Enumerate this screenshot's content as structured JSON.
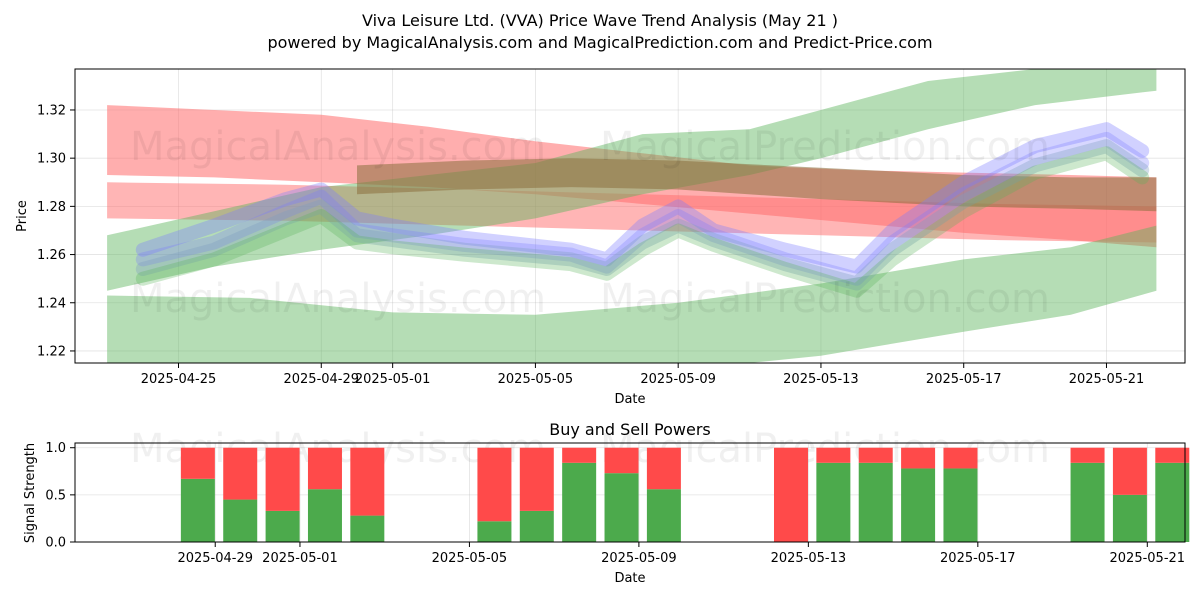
{
  "chart_data": [
    {
      "type": "area",
      "title": "Viva Leisure Ltd. (VVA) Price Wave Trend Analysis (May 21 )",
      "subtitle": "powered by MagicalAnalysis.com and MagicalPrediction.com and Predict-Price.com",
      "xlabel": "Date",
      "ylabel": "Price",
      "ylim": [
        1.215,
        1.337
      ],
      "x_ticks": [
        "2025-04-25",
        "2025-04-29",
        "2025-05-01",
        "2025-05-05",
        "2025-05-09",
        "2025-05-13",
        "2025-05-17",
        "2025-05-21"
      ],
      "y_ticks": [
        "1.22",
        "1.24",
        "1.26",
        "1.28",
        "1.30",
        "1.32"
      ],
      "watermarks": [
        "MagicalAnalysis.com",
        "MagicalPrediction.com",
        "MagicalAnalysis.com",
        "MagicalPrediction.com"
      ],
      "colors": {
        "red": "#ff6b6b",
        "green": "#5ab45a",
        "blue": "#7a7aff",
        "slate": "#7f9fbf",
        "brown": "#8b6f3e"
      },
      "series": [
        {
          "name": "red-wave-upper",
          "color": "#ff6b6b",
          "opacity": 0.55,
          "x": [
            0,
            3,
            6,
            9,
            12,
            15,
            18,
            21,
            24,
            27,
            29.4
          ],
          "lower": [
            1.293,
            1.292,
            1.29,
            1.288,
            1.285,
            1.281,
            1.277,
            1.273,
            1.269,
            1.266,
            1.263
          ],
          "upper": [
            1.322,
            1.32,
            1.318,
            1.313,
            1.307,
            1.302,
            1.297,
            1.295,
            1.294,
            1.293,
            1.292
          ]
        },
        {
          "name": "red-wave-lower",
          "color": "#ff6b6b",
          "opacity": 0.5,
          "x": [
            0,
            5,
            10,
            15,
            20,
            25,
            29.4
          ],
          "lower": [
            1.275,
            1.274,
            1.272,
            1.27,
            1.268,
            1.266,
            1.265
          ],
          "upper": [
            1.29,
            1.289,
            1.287,
            1.285,
            1.283,
            1.281,
            1.28
          ]
        },
        {
          "name": "green-wave-top",
          "color": "#5ab45a",
          "opacity": 0.45,
          "x": [
            0,
            3,
            6,
            9,
            12,
            15,
            18,
            20,
            23,
            26,
            29.4
          ],
          "lower": [
            1.245,
            1.255,
            1.262,
            1.268,
            1.275,
            1.285,
            1.293,
            1.3,
            1.312,
            1.322,
            1.328
          ],
          "upper": [
            1.268,
            1.278,
            1.288,
            1.293,
            1.298,
            1.31,
            1.312,
            1.32,
            1.332,
            1.337,
            1.338
          ]
        },
        {
          "name": "green-wave-bottom",
          "color": "#5ab45a",
          "opacity": 0.45,
          "x": [
            0,
            4,
            8,
            12,
            16,
            20,
            24,
            27,
            29.4
          ],
          "lower": [
            1.215,
            1.215,
            1.212,
            1.21,
            1.212,
            1.218,
            1.228,
            1.235,
            1.245
          ],
          "upper": [
            1.243,
            1.242,
            1.236,
            1.235,
            1.24,
            1.248,
            1.258,
            1.263,
            1.272
          ]
        },
        {
          "name": "brown-wave",
          "color": "#8b6f3e",
          "opacity": 0.55,
          "x": [
            7,
            10,
            13,
            16,
            20,
            24,
            27,
            29.4
          ],
          "lower": [
            1.285,
            1.287,
            1.288,
            1.287,
            1.283,
            1.28,
            1.279,
            1.278
          ],
          "upper": [
            1.297,
            1.299,
            1.3,
            1.299,
            1.296,
            1.293,
            1.292,
            1.292
          ]
        },
        {
          "name": "blue-trend-1",
          "color": "#7a7aff",
          "opacity": 0.35,
          "x": [
            1,
            3,
            5,
            6,
            7,
            8,
            10,
            13,
            14,
            15,
            16,
            17,
            19,
            21,
            22,
            24,
            26,
            28,
            29
          ],
          "y": [
            1.262,
            1.272,
            1.283,
            1.287,
            1.275,
            1.272,
            1.267,
            1.262,
            1.258,
            1.272,
            1.28,
            1.27,
            1.262,
            1.255,
            1.27,
            1.29,
            1.305,
            1.312,
            1.303
          ]
        },
        {
          "name": "blue-trend-2",
          "color": "#7a7aff",
          "opacity": 0.3,
          "x": [
            1,
            3,
            5,
            6,
            7,
            8,
            10,
            13,
            14,
            15,
            16,
            17,
            19,
            21,
            22,
            24,
            26,
            28,
            29
          ],
          "y": [
            1.258,
            1.265,
            1.278,
            1.284,
            1.27,
            1.268,
            1.264,
            1.26,
            1.255,
            1.268,
            1.276,
            1.268,
            1.258,
            1.25,
            1.265,
            1.285,
            1.3,
            1.308,
            1.298
          ]
        },
        {
          "name": "slate-trend",
          "color": "#7f9fbf",
          "opacity": 0.35,
          "x": [
            1,
            3,
            5,
            6,
            7,
            8,
            10,
            13,
            14,
            15,
            16,
            17,
            19,
            21,
            22,
            24,
            26,
            28,
            29
          ],
          "y": [
            1.254,
            1.262,
            1.275,
            1.28,
            1.268,
            1.266,
            1.262,
            1.258,
            1.254,
            1.265,
            1.272,
            1.266,
            1.256,
            1.248,
            1.262,
            1.282,
            1.297,
            1.305,
            1.295
          ]
        },
        {
          "name": "green-trend",
          "color": "#5ab45a",
          "opacity": 0.3,
          "x": [
            1,
            3,
            5,
            6,
            7,
            8,
            10,
            13,
            14,
            15,
            16,
            17,
            19,
            21,
            22,
            24,
            26,
            28,
            29
          ],
          "y": [
            1.25,
            1.258,
            1.27,
            1.276,
            1.265,
            1.263,
            1.26,
            1.256,
            1.252,
            1.262,
            1.27,
            1.264,
            1.254,
            1.245,
            1.258,
            1.278,
            1.294,
            1.302,
            1.292
          ]
        }
      ]
    },
    {
      "type": "bar",
      "title": "Buy and Sell Powers",
      "xlabel": "Date",
      "ylabel": "Signal Strength",
      "ylim": [
        0,
        1.05
      ],
      "x_ticks": [
        "2025-04-29",
        "2025-05-01",
        "2025-05-05",
        "2025-05-09",
        "2025-05-13",
        "2025-05-17",
        "2025-05-21"
      ],
      "y_ticks": [
        "0.0",
        "0.5",
        "1.0"
      ],
      "colors": {
        "buy": "#4caa4c",
        "sell": "#ff4a4a"
      },
      "x": [
        0,
        1,
        2,
        3,
        4,
        7,
        8,
        9,
        10,
        11,
        14,
        15,
        16,
        17,
        18,
        21,
        22,
        23
      ],
      "buy": [
        0.67,
        0.45,
        0.33,
        0.56,
        0.28,
        0.22,
        0.33,
        0.84,
        0.73,
        0.56,
        0.0,
        0.84,
        0.84,
        0.78,
        0.78,
        0.84,
        0.5,
        0.84
      ],
      "sell": [
        0.33,
        0.55,
        0.67,
        0.44,
        0.72,
        0.78,
        0.67,
        0.16,
        0.27,
        0.44,
        1.0,
        0.16,
        0.16,
        0.22,
        0.22,
        0.16,
        0.5,
        0.16
      ]
    }
  ]
}
